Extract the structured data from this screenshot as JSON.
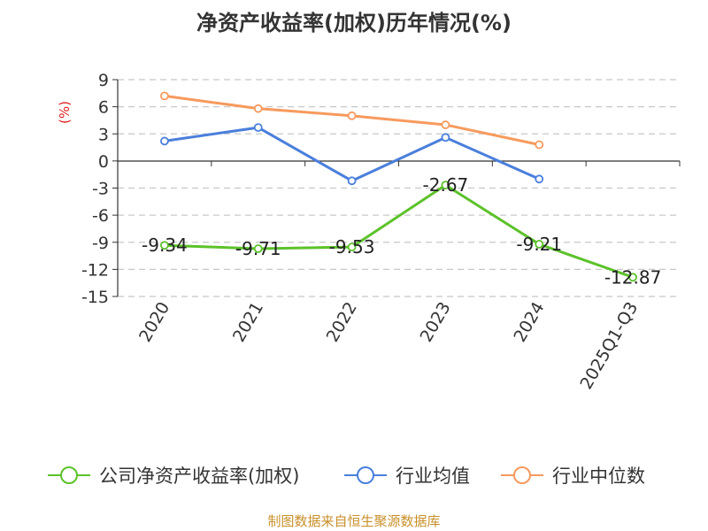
{
  "chart_data": {
    "type": "line",
    "title": "净资产收益率(加权)历年情况(%)",
    "ylabel": "(%)",
    "xlabel": "",
    "categories": [
      "2020",
      "2021",
      "2022",
      "2023",
      "2024",
      "2025Q1-Q3"
    ],
    "ylim": [
      -15,
      9
    ],
    "yticks": [
      "9",
      "6",
      "3",
      "0",
      "-3",
      "-6",
      "-9",
      "-12",
      "-15"
    ],
    "grid": true,
    "legend_position": "bottom",
    "series": [
      {
        "name": "公司净资产收益率(加权)",
        "color": "#5cc22a",
        "values": [
          -9.34,
          -9.71,
          -9.53,
          -2.67,
          -9.21,
          -12.87
        ],
        "labels": [
          "-9.34",
          "-9.71",
          "-9.53",
          "-2.67",
          "-9.21",
          "-12.87"
        ]
      },
      {
        "name": "行业均值",
        "color": "#4a7fdc",
        "values": [
          2.2,
          3.7,
          -2.2,
          2.6,
          -2.0,
          null
        ]
      },
      {
        "name": "行业中位数",
        "color": "#f79a5d",
        "values": [
          7.2,
          5.8,
          5.0,
          4.0,
          1.8,
          null
        ]
      }
    ]
  },
  "source": "制图数据来自恒生聚源数据库"
}
